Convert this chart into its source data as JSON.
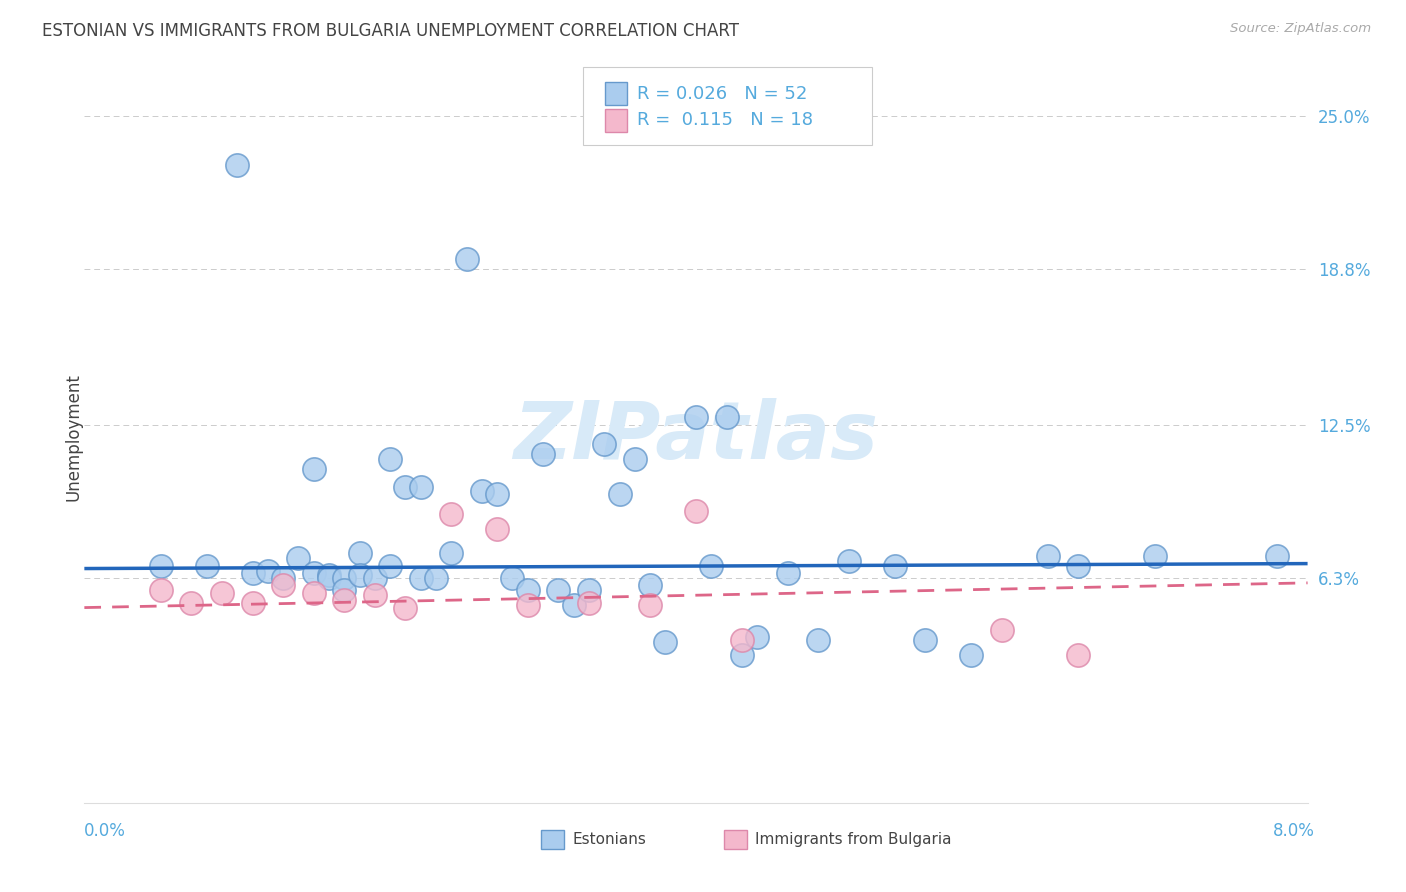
{
  "title": "ESTONIAN VS IMMIGRANTS FROM BULGARIA UNEMPLOYMENT CORRELATION CHART",
  "source": "Source: ZipAtlas.com",
  "ylabel": "Unemployment",
  "ytick_labels": [
    "6.3%",
    "12.5%",
    "18.8%",
    "25.0%"
  ],
  "ytick_values": [
    0.063,
    0.125,
    0.188,
    0.25
  ],
  "xmin": 0.0,
  "xmax": 0.08,
  "ymin": -0.028,
  "ymax": 0.268,
  "blue_color": "#aaccee",
  "blue_edge": "#6699cc",
  "blue_line": "#2266bb",
  "pink_color": "#f4b8cc",
  "pink_edge": "#dd88aa",
  "pink_line": "#dd6688",
  "watermark_color": "#d8eaf8",
  "grid_color": "#cccccc",
  "background": "#ffffff",
  "axis_label_color": "#55aadd",
  "text_color": "#444444",
  "blue_x": [
    0.005,
    0.008,
    0.01,
    0.011,
    0.012,
    0.013,
    0.014,
    0.015,
    0.015,
    0.016,
    0.016,
    0.017,
    0.017,
    0.018,
    0.018,
    0.019,
    0.02,
    0.02,
    0.021,
    0.022,
    0.022,
    0.023,
    0.024,
    0.025,
    0.026,
    0.027,
    0.028,
    0.029,
    0.03,
    0.031,
    0.032,
    0.033,
    0.034,
    0.035,
    0.036,
    0.037,
    0.038,
    0.04,
    0.041,
    0.042,
    0.043,
    0.044,
    0.046,
    0.048,
    0.05,
    0.053,
    0.055,
    0.058,
    0.063,
    0.065,
    0.07,
    0.078
  ],
  "blue_y": [
    0.068,
    0.068,
    0.23,
    0.065,
    0.066,
    0.063,
    0.071,
    0.107,
    0.065,
    0.064,
    0.063,
    0.063,
    0.058,
    0.073,
    0.064,
    0.063,
    0.068,
    0.111,
    0.1,
    0.063,
    0.1,
    0.063,
    0.073,
    0.192,
    0.098,
    0.097,
    0.063,
    0.058,
    0.113,
    0.058,
    0.052,
    0.058,
    0.117,
    0.097,
    0.111,
    0.06,
    0.037,
    0.128,
    0.068,
    0.128,
    0.032,
    0.039,
    0.065,
    0.038,
    0.07,
    0.068,
    0.038,
    0.032,
    0.072,
    0.068,
    0.072,
    0.072
  ],
  "pink_x": [
    0.005,
    0.007,
    0.009,
    0.011,
    0.013,
    0.015,
    0.017,
    0.019,
    0.021,
    0.024,
    0.027,
    0.029,
    0.033,
    0.037,
    0.04,
    0.043,
    0.06,
    0.065
  ],
  "pink_y": [
    0.058,
    0.053,
    0.057,
    0.053,
    0.06,
    0.057,
    0.054,
    0.056,
    0.051,
    0.089,
    0.083,
    0.052,
    0.053,
    0.052,
    0.09,
    0.038,
    0.042,
    0.032
  ],
  "blue_trend_y0": 0.0668,
  "blue_trend_y1": 0.0688,
  "pink_trend_y0": 0.051,
  "pink_trend_y1": 0.061
}
